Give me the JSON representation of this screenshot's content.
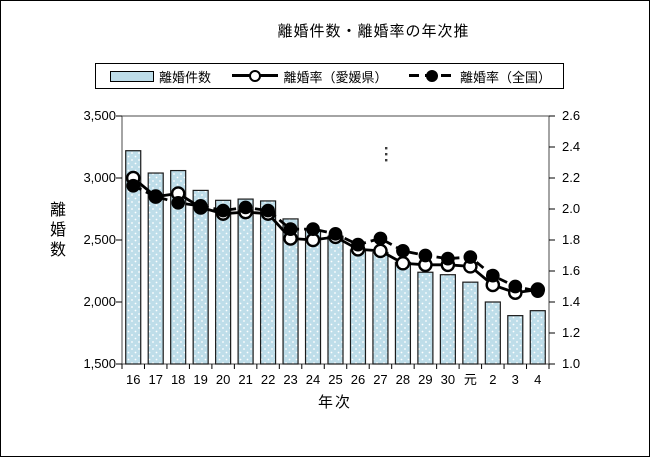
{
  "title": "離婚件数・離婚率の年次推",
  "legend": {
    "position": "top",
    "items": [
      {
        "label": "離婚件数",
        "swatch": "bar",
        "color": "#bedde9"
      },
      {
        "label": "離婚率（愛媛県）",
        "swatch": "line-open-circle",
        "color": "#000000"
      },
      {
        "label": "離婚率（全国）",
        "swatch": "dashed-line-filled-circle",
        "color": "#000000"
      }
    ]
  },
  "axes": {
    "left": {
      "title": "離婚数",
      "ticks": [
        "3,500",
        "3,000",
        "2,500",
        "2,000",
        "1,500"
      ]
    },
    "right": {
      "ticks": [
        "2.6",
        "2.4",
        "2.2",
        "2.0",
        "1.8",
        "1.6",
        "1.4",
        "1.2",
        "1.0"
      ]
    },
    "x": {
      "title": "年次",
      "labels": [
        "16",
        "17",
        "18",
        "19",
        "20",
        "21",
        "22",
        "23",
        "24",
        "25",
        "26",
        "27",
        "28",
        "29",
        "30",
        "元",
        "2",
        "3",
        "4"
      ]
    }
  },
  "annotation": {
    "text": "⋮"
  },
  "colors": {
    "bar_fill": "#bedde9",
    "bar_border": "#1a1a1a",
    "line": "#000000",
    "frame": "#4a4a4a"
  },
  "chart_data": {
    "type": "bar",
    "subtype": "combo-bar-line",
    "title": "離婚件数・離婚率の年次推",
    "xlabel": "年次",
    "ylabel_left": "離婚数",
    "categories": [
      "16",
      "17",
      "18",
      "19",
      "20",
      "21",
      "22",
      "23",
      "24",
      "25",
      "26",
      "27",
      "28",
      "29",
      "30",
      "元",
      "2",
      "3",
      "4"
    ],
    "series": [
      {
        "name": "離婚件数",
        "type": "bar",
        "axis": "left",
        "color": "#bedde9",
        "values": [
          3220,
          3040,
          3060,
          2900,
          2820,
          2830,
          2815,
          2670,
          2580,
          2530,
          2420,
          2400,
          2320,
          2240,
          2220,
          2160,
          2000,
          1890,
          1930
        ]
      },
      {
        "name": "離婚率（愛媛県）",
        "type": "line",
        "marker": "open-circle",
        "dash": false,
        "axis": "right",
        "color": "#000000",
        "values": [
          2.2,
          2.08,
          2.1,
          2.01,
          1.97,
          1.98,
          1.97,
          1.81,
          1.8,
          1.82,
          1.74,
          1.73,
          1.65,
          1.64,
          1.64,
          1.63,
          1.51,
          1.46,
          1.48
        ]
      },
      {
        "name": "離婚率（全国）",
        "type": "line",
        "marker": "filled-circle",
        "dash": true,
        "axis": "right",
        "color": "#000000",
        "values": [
          2.15,
          2.08,
          2.04,
          2.02,
          1.99,
          2.01,
          1.99,
          1.87,
          1.87,
          1.84,
          1.77,
          1.81,
          1.73,
          1.7,
          1.68,
          1.69,
          1.57,
          1.5,
          1.47
        ]
      }
    ],
    "left_ylim": [
      1500,
      3500
    ],
    "left_tick_step": 500,
    "right_ylim": [
      1.0,
      2.6
    ],
    "right_tick_step": 0.2,
    "grid": false,
    "legend_position": "top"
  }
}
